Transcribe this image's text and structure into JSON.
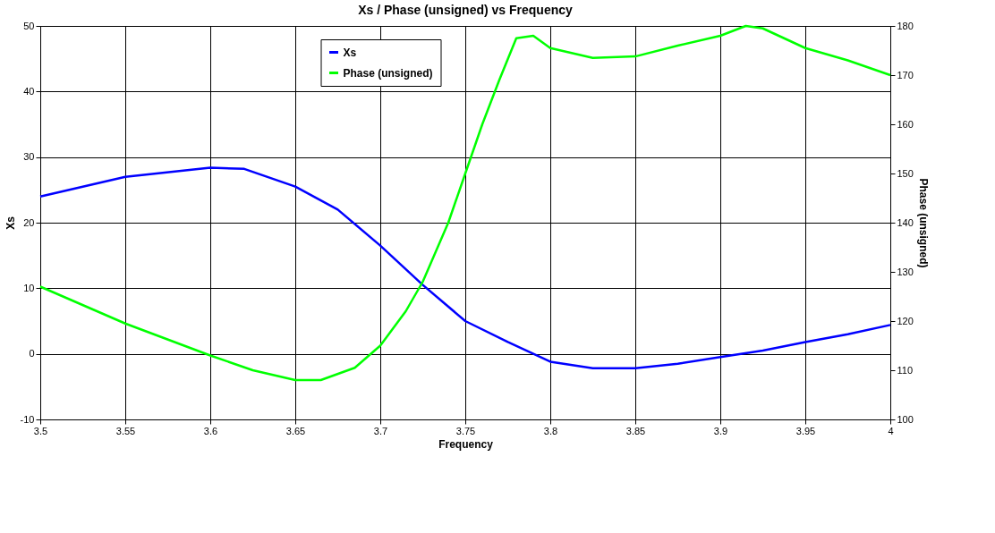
{
  "chart_data": {
    "type": "line",
    "title": "Xs / Phase (unsigned)  vs  Frequency",
    "xlabel": "Frequency",
    "ylabel": "Xs",
    "y2label": "Phase (unsigned)",
    "series": [
      {
        "name": "Xs",
        "color": "#0000ff",
        "x": [
          3.5,
          3.55,
          3.6,
          3.62,
          3.65,
          3.675,
          3.7,
          3.725,
          3.75,
          3.775,
          3.8,
          3.825,
          3.85,
          3.875,
          3.9,
          3.925,
          3.95,
          3.975,
          4.0
        ],
        "values": [
          24,
          27,
          28.4,
          28.2,
          25.5,
          22,
          16.5,
          10.5,
          5,
          1.8,
          -1.2,
          -2.2,
          -2.2,
          -1.5,
          -0.5,
          0.5,
          1.8,
          3,
          4.4
        ]
      },
      {
        "name": "Phase (unsigned)",
        "color": "#00ff00",
        "axis": "y2",
        "x": [
          3.5,
          3.55,
          3.6,
          3.625,
          3.65,
          3.665,
          3.685,
          3.7,
          3.715,
          3.725,
          3.74,
          3.75,
          3.76,
          3.77,
          3.78,
          3.79,
          3.8,
          3.825,
          3.85,
          3.875,
          3.9,
          3.915,
          3.925,
          3.95,
          3.975,
          4.0
        ],
        "values": [
          127,
          119.5,
          113,
          110,
          108,
          108,
          110.5,
          115,
          122,
          128,
          140,
          150,
          160,
          169,
          177.5,
          178,
          175.5,
          173.5,
          173.8,
          176,
          178,
          180,
          179.5,
          175.5,
          173,
          170
        ]
      }
    ],
    "xlim": [
      3.5,
      4.0
    ],
    "xticks": [
      3.5,
      3.55,
      3.6,
      3.65,
      3.7,
      3.75,
      3.8,
      3.85,
      3.9,
      3.95,
      4
    ],
    "ylim": [
      -10,
      50
    ],
    "yticks": [
      -10,
      0,
      10,
      20,
      30,
      40,
      50
    ],
    "y2lim": [
      100,
      180
    ],
    "y2ticks": [
      100,
      110,
      120,
      130,
      140,
      150,
      160,
      170,
      180
    ],
    "grid": true,
    "legend": "top",
    "marker": "none",
    "line_style": "solid"
  }
}
